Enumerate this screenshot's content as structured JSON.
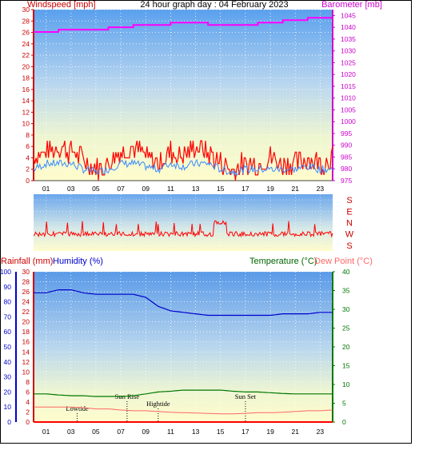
{
  "header": {
    "wind_label": "Windspeed [mph]",
    "title": "24 hour graph day : 04 February 2023",
    "baro_label": "Barometer [mb]"
  },
  "lower_header": {
    "rain_label": "Rainfall (mm)",
    "humidity_label": "Humidity (%)",
    "temp_label": "Temperature (°C)",
    "dew_label": "Dew Point (°C)"
  },
  "colors": {
    "wind": "#ff0000",
    "wind_avg": "#3c8cff",
    "baro": "#ff00ff",
    "humidity": "#0000cc",
    "temperature": "#007700",
    "dew": "#ff6666",
    "rain": "#ff0000",
    "wind_dir": "#ff0000"
  },
  "chart_data": [
    {
      "type": "line",
      "title": "24 hour graph day : 04 February 2023",
      "x_ticks": [
        "01",
        "03",
        "05",
        "07",
        "09",
        "11",
        "13",
        "15",
        "17",
        "19",
        "21",
        "23"
      ],
      "xlim": [
        0,
        24
      ],
      "y_left": {
        "label": "Windspeed [mph]",
        "ylim": [
          0,
          30
        ],
        "ticks": [
          0,
          2,
          4,
          6,
          8,
          10,
          12,
          14,
          16,
          18,
          20,
          22,
          24,
          26,
          28,
          30
        ]
      },
      "y_right": {
        "label": "Barometer [mb]",
        "ylim": [
          975,
          1047.5
        ],
        "ticks": [
          975,
          980,
          985,
          990,
          995,
          1000,
          1005,
          1010,
          1015,
          1020,
          1025,
          1030,
          1035,
          1040,
          1045
        ]
      },
      "grid": true,
      "series": [
        {
          "name": "Windspeed [mph]",
          "axis": "left",
          "x": [
            0,
            1,
            2,
            3,
            4,
            5,
            6,
            7,
            8,
            9,
            10,
            11,
            12,
            13,
            14,
            15,
            16,
            17,
            18,
            19,
            20,
            21,
            22,
            23,
            24
          ],
          "values": [
            4,
            5,
            6,
            5,
            4,
            2,
            3,
            5,
            6,
            4,
            3,
            5,
            4,
            6,
            5,
            3,
            2,
            3,
            3,
            4,
            3,
            3,
            4,
            3,
            4
          ]
        },
        {
          "name": "Windspeed average",
          "axis": "left",
          "x": [
            0,
            1,
            2,
            3,
            4,
            5,
            6,
            7,
            8,
            9,
            10,
            11,
            12,
            13,
            14,
            15,
            16,
            17,
            18,
            19,
            20,
            21,
            22,
            23,
            24
          ],
          "values": [
            2,
            3,
            3,
            3,
            2,
            1.5,
            2,
            3,
            3,
            2.5,
            2,
            3,
            2.5,
            3,
            3,
            2,
            1.5,
            2,
            2,
            2,
            2,
            2,
            2.5,
            2,
            2
          ]
        },
        {
          "name": "Barometer [mb]",
          "axis": "right",
          "x": [
            0,
            1,
            2,
            3,
            4,
            5,
            6,
            7,
            8,
            9,
            10,
            11,
            12,
            13,
            14,
            15,
            16,
            17,
            18,
            19,
            20,
            21,
            22,
            23,
            24
          ],
          "values": [
            1038,
            1038,
            1039,
            1039,
            1039,
            1039,
            1040,
            1040,
            1041,
            1041,
            1041,
            1042,
            1042,
            1042,
            1041,
            1041,
            1041,
            1041,
            1042,
            1042,
            1043,
            1043,
            1044,
            1044,
            1044
          ]
        }
      ]
    },
    {
      "type": "scatter",
      "title": "",
      "y_categories": [
        "S",
        "E",
        "N",
        "W",
        "S"
      ],
      "xlim": [
        0,
        24
      ],
      "series": [
        {
          "name": "Wind direction",
          "x": [
            0,
            2,
            4,
            6,
            8,
            10,
            12,
            14,
            15,
            16,
            18,
            20,
            22,
            24
          ],
          "values": [
            "W",
            "W",
            "W",
            "W",
            "W",
            "W",
            "W",
            "W",
            "N",
            "W",
            "W",
            "W",
            "W",
            "W"
          ]
        }
      ]
    },
    {
      "type": "line",
      "x_ticks": [
        "01",
        "03",
        "05",
        "07",
        "09",
        "11",
        "13",
        "15",
        "17",
        "19",
        "21",
        "23"
      ],
      "xlim": [
        0,
        24
      ],
      "y_left_outer": {
        "label": "Humidity (%)",
        "ylim": [
          0,
          100
        ],
        "ticks": [
          0,
          10,
          20,
          30,
          40,
          50,
          60,
          70,
          80,
          90,
          100
        ]
      },
      "y_left_inner": {
        "label": "Rainfall (mm)",
        "ylim": [
          0,
          30
        ],
        "ticks": [
          0,
          2,
          4,
          6,
          8,
          10,
          12,
          14,
          16,
          18,
          20,
          22,
          24,
          26,
          28,
          30
        ]
      },
      "y_right": {
        "label": "Temperature (°C)",
        "ylim": [
          0,
          40
        ],
        "ticks": [
          0,
          5,
          10,
          15,
          20,
          25,
          30,
          35,
          40
        ]
      },
      "annotations": [
        {
          "label": "Lowtide",
          "x": 3.5
        },
        {
          "label": "Sun Rise",
          "x": 7.5
        },
        {
          "label": "Hightide",
          "x": 10
        },
        {
          "label": "Sun Set",
          "x": 17
        }
      ],
      "series": [
        {
          "name": "Humidity (%)",
          "axis": "left_outer",
          "x": [
            0,
            1,
            2,
            3,
            4,
            5,
            6,
            7,
            8,
            9,
            10,
            11,
            12,
            13,
            14,
            15,
            16,
            17,
            18,
            19,
            20,
            21,
            22,
            23,
            24
          ],
          "values": [
            86,
            86,
            88,
            88,
            86,
            85,
            85,
            85,
            85,
            83,
            77,
            74,
            73,
            72,
            71,
            71,
            71,
            71,
            71,
            71,
            72,
            72,
            72,
            73,
            73
          ]
        },
        {
          "name": "Temperature (°C)",
          "axis": "right",
          "x": [
            0,
            1,
            2,
            3,
            4,
            5,
            6,
            7,
            8,
            9,
            10,
            11,
            12,
            13,
            14,
            15,
            16,
            17,
            18,
            19,
            20,
            21,
            22,
            23,
            24
          ],
          "values": [
            7.5,
            7.5,
            7.2,
            7,
            7,
            6.8,
            6.8,
            6.8,
            7,
            7.5,
            8,
            8.2,
            8.5,
            8.5,
            8.5,
            8.5,
            8.2,
            8,
            8,
            7.8,
            7.6,
            7.5,
            7.5,
            7.5,
            7.5
          ]
        },
        {
          "name": "Dew Point (°C)",
          "axis": "right",
          "x": [
            0,
            1,
            2,
            3,
            4,
            5,
            6,
            7,
            8,
            9,
            10,
            11,
            12,
            13,
            14,
            15,
            16,
            17,
            18,
            19,
            20,
            21,
            22,
            23,
            24
          ],
          "values": [
            4,
            4,
            4,
            4,
            3.8,
            3.5,
            3.5,
            3.2,
            3,
            3,
            2.8,
            2.6,
            2.5,
            2.4,
            2.3,
            2.2,
            2.2,
            2.3,
            2.5,
            2.5,
            2.6,
            2.8,
            3,
            3,
            3.2
          ]
        },
        {
          "name": "Rainfall (mm)",
          "axis": "left_inner",
          "x": [
            0,
            24
          ],
          "values": [
            0,
            0
          ]
        }
      ]
    }
  ]
}
